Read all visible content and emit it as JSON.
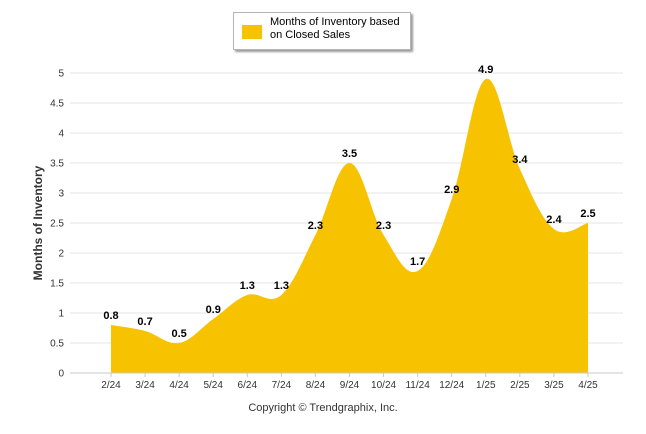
{
  "chart_data": {
    "type": "area",
    "categories": [
      "2/24",
      "3/24",
      "4/24",
      "5/24",
      "6/24",
      "7/24",
      "8/24",
      "9/24",
      "10/24",
      "11/24",
      "12/24",
      "1/25",
      "2/25",
      "3/25",
      "4/25"
    ],
    "series": [
      {
        "name": "Months of Inventory based on Closed Sales",
        "values": [
          0.8,
          0.7,
          0.5,
          0.9,
          1.3,
          1.3,
          2.3,
          3.5,
          2.3,
          1.7,
          2.9,
          4.9,
          3.4,
          2.4,
          2.5
        ],
        "color": "#f7c200"
      }
    ],
    "data_labels": [
      "0.8",
      "0.7",
      "0.5",
      "0.9",
      "1.3",
      "1.3",
      "2.3",
      "3.5",
      "2.3",
      "1.7",
      "2.9",
      "4.9",
      "3.4",
      "2.4",
      "2.5"
    ],
    "ylabel": "Months of Inventory",
    "xlabel": "",
    "ylim": [
      0,
      5
    ],
    "yticks": [
      "0",
      "0.5",
      "1",
      "1.5",
      "2",
      "2.5",
      "3",
      "3.5",
      "4",
      "4.5",
      "5"
    ],
    "grid": true,
    "legend_position": "top-center",
    "footer": "Copyright © Trendgraphix, Inc."
  }
}
